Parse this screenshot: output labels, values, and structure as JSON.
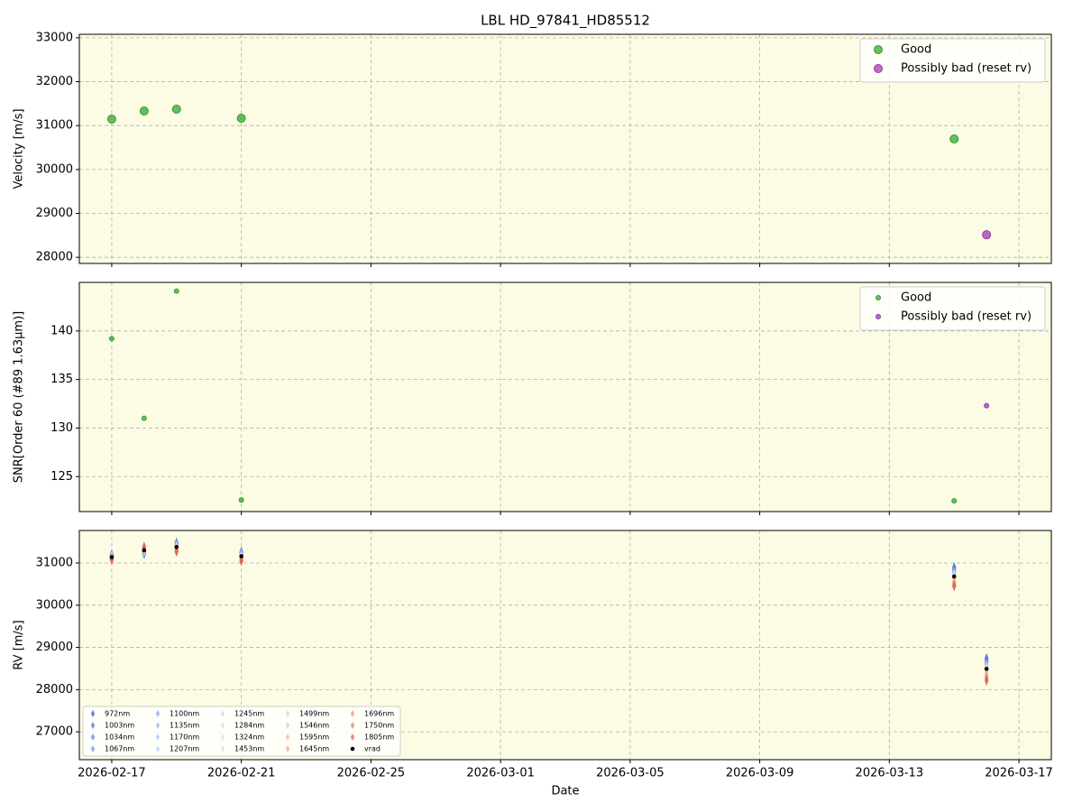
{
  "chart_data": [
    {
      "type": "scatter",
      "title": "LBL HD_97841_HD85512",
      "ylabel": "Velocity [m/s]",
      "xlim": [
        "2026-02-16",
        "2026-03-18"
      ],
      "xticks": [
        "2026-02-17",
        "2026-02-21",
        "2026-02-25",
        "2026-03-01",
        "2026-03-05",
        "2026-03-09",
        "2026-03-13",
        "2026-03-17"
      ],
      "ylim": [
        27860,
        33080
      ],
      "yticks": [
        28000,
        29000,
        30000,
        31000,
        32000,
        33000
      ],
      "grid": true,
      "legend": "upper right",
      "background": "#fcfce4",
      "series": [
        {
          "name": "Good",
          "color": "#2ca02c",
          "x": [
            "2026-02-17",
            "2026-02-18",
            "2026-02-19",
            "2026-02-21",
            "2026-03-15"
          ],
          "values": [
            31148,
            31333,
            31374,
            31169,
            30695
          ]
        },
        {
          "name": "Possibly bad (reset rv)",
          "color": "#9932a8",
          "x": [
            "2026-03-16"
          ],
          "values": [
            28514
          ]
        }
      ]
    },
    {
      "type": "scatter",
      "ylabel": "SNR[Order 60 (#89 1.63μm)]",
      "xlim": [
        "2026-02-16",
        "2026-03-18"
      ],
      "xticks": [
        "2026-02-17",
        "2026-02-21",
        "2026-02-25",
        "2026-03-01",
        "2026-03-05",
        "2026-03-09",
        "2026-03-13",
        "2026-03-17"
      ],
      "ylim": [
        121.4,
        145
      ],
      "yticks": [
        125,
        130,
        135,
        140
      ],
      "grid": true,
      "legend": "upper right",
      "background": "#fcfce4",
      "series": [
        {
          "name": "Good",
          "color": "#2ca02c",
          "x": [
            "2026-02-17",
            "2026-02-18",
            "2026-02-19",
            "2026-02-21",
            "2026-03-15"
          ],
          "values": [
            139.2,
            131.0,
            144.1,
            122.6,
            122.5
          ]
        },
        {
          "name": "Possibly bad (reset rv)",
          "color": "#9932a8",
          "x": [
            "2026-03-16"
          ],
          "values": [
            132.3
          ]
        }
      ]
    },
    {
      "type": "scatter",
      "ylabel": "RV [m/s]",
      "xlabel": "Date",
      "xlim": [
        "2026-02-16",
        "2026-03-18"
      ],
      "xticks": [
        "2026-02-17",
        "2026-02-21",
        "2026-02-25",
        "2026-03-01",
        "2026-03-05",
        "2026-03-09",
        "2026-03-13",
        "2026-03-17"
      ],
      "ylim": [
        26340,
        31770
      ],
      "yticks": [
        27000,
        28000,
        29000,
        30000,
        31000
      ],
      "grid": true,
      "legend": "lower left",
      "legend_columns": 5,
      "background": "#fcfce4",
      "x": [
        "2026-02-17",
        "2026-02-18",
        "2026-02-19",
        "2026-02-21",
        "2026-03-15",
        "2026-03-16"
      ],
      "series": [
        {
          "name": "972nm",
          "color": "#3b4cc0",
          "values": [
            31200,
            31220,
            31480,
            31260,
            30900,
            28740
          ]
        },
        {
          "name": "1003nm",
          "color": "#4a63d3",
          "values": [
            31190,
            31230,
            31470,
            31250,
            30870,
            28710
          ]
        },
        {
          "name": "1034nm",
          "color": "#5b7ae5",
          "values": [
            31190,
            31240,
            31460,
            31240,
            30850,
            28680
          ]
        },
        {
          "name": "1067nm",
          "color": "#6c8ff1",
          "values": [
            31180,
            31250,
            31450,
            31230,
            30820,
            28650
          ]
        },
        {
          "name": "1100nm",
          "color": "#7ea1fa",
          "values": [
            31170,
            31260,
            31430,
            31210,
            30800,
            28620
          ]
        },
        {
          "name": "1135nm",
          "color": "#90b2fe",
          "values": [
            31160,
            31270,
            31420,
            31200,
            30770,
            28590
          ]
        },
        {
          "name": "1170nm",
          "color": "#a3c2fe",
          "values": [
            31160,
            31280,
            31410,
            31190,
            30740,
            28560
          ]
        },
        {
          "name": "1207nm",
          "color": "#b5cdfa",
          "values": [
            31150,
            31290,
            31400,
            31180,
            30720,
            28540
          ]
        },
        {
          "name": "1245nm",
          "color": "#c6d6f1",
          "values": [
            31140,
            31300,
            31390,
            31170,
            30690,
            28510
          ]
        },
        {
          "name": "1284nm",
          "color": "#d4dbe6",
          "values": [
            31140,
            31300,
            31370,
            31150,
            30670,
            28480
          ]
        },
        {
          "name": "1324nm",
          "color": "#dddcdc",
          "values": [
            31130,
            31310,
            31360,
            31140,
            30640,
            28440
          ]
        },
        {
          "name": "1453nm",
          "color": "#ecd3c5",
          "values": [
            31120,
            31320,
            31350,
            31130,
            30620,
            28420
          ]
        },
        {
          "name": "1499nm",
          "color": "#f2c9b4",
          "values": [
            31120,
            31330,
            31340,
            31120,
            30590,
            28390
          ]
        },
        {
          "name": "1546nm",
          "color": "#f6bda2",
          "values": [
            31110,
            31340,
            31330,
            31110,
            30560,
            28360
          ]
        },
        {
          "name": "1595nm",
          "color": "#f7af91",
          "values": [
            31100,
            31350,
            31320,
            31100,
            30540,
            28330
          ]
        },
        {
          "name": "1645nm",
          "color": "#f59f80",
          "values": [
            31090,
            31360,
            31300,
            31080,
            30510,
            28300
          ]
        },
        {
          "name": "1696nm",
          "color": "#f08b6e",
          "values": [
            31090,
            31370,
            31290,
            31070,
            30490,
            28270
          ]
        },
        {
          "name": "1750nm",
          "color": "#e7745b",
          "values": [
            31080,
            31380,
            31280,
            31060,
            30460,
            28240
          ]
        },
        {
          "name": "1805nm",
          "color": "#dc5d4a",
          "values": [
            31080,
            31380,
            31270,
            31050,
            30450,
            28210
          ]
        },
        {
          "name": "vrad",
          "color": "#000000",
          "values": [
            31140,
            31300,
            31380,
            31160,
            30680,
            28490
          ]
        }
      ]
    }
  ]
}
